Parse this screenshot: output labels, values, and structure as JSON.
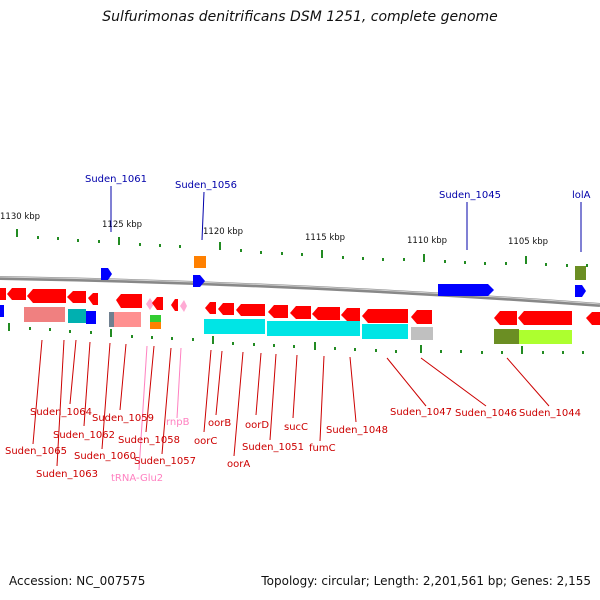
{
  "title": "Sulfurimonas denitrificans DSM 1251, complete genome",
  "footer": {
    "accession": "Accession: NC_007575",
    "info": "Topology: circular; Length: 2,201,561 bp; Genes: 2,155"
  },
  "scale": [
    "1130 kbp",
    "1125 kbp",
    "1120 kbp",
    "1115 kbp",
    "1110 kbp",
    "1105 kbp"
  ],
  "genes_top": [
    "Suden_1061",
    "Suden_1056",
    "Suden_1045",
    "lolA"
  ],
  "genes_bottom": [
    "Suden_1064",
    "Suden_1065",
    "Suden_1062",
    "Suden_1063",
    "Suden_1059",
    "Suden_1060",
    "Suden_1058",
    "tRNA-Glu2",
    "rnpB",
    "Suden_1057",
    "oorC",
    "oorB",
    "oorA",
    "oorD",
    "Suden_1051",
    "sucC",
    "fumC",
    "Suden_1048",
    "Suden_1047",
    "Suden_1046",
    "Suden_1044"
  ],
  "colors": {
    "gene": "#ff0000",
    "gene_shadow": "#e06060",
    "operon": "#00e0e0",
    "operon2": "#008080",
    "blue_gene": "#0000ff",
    "orange": "#ff8000",
    "olive": "#6b8e23",
    "lime": "#adff2f",
    "gray": "#b0b0b0",
    "label_red": "#cc0000",
    "label_blue": "#0000aa",
    "label_pink": "#ff80c0",
    "tick": "#228b22"
  }
}
